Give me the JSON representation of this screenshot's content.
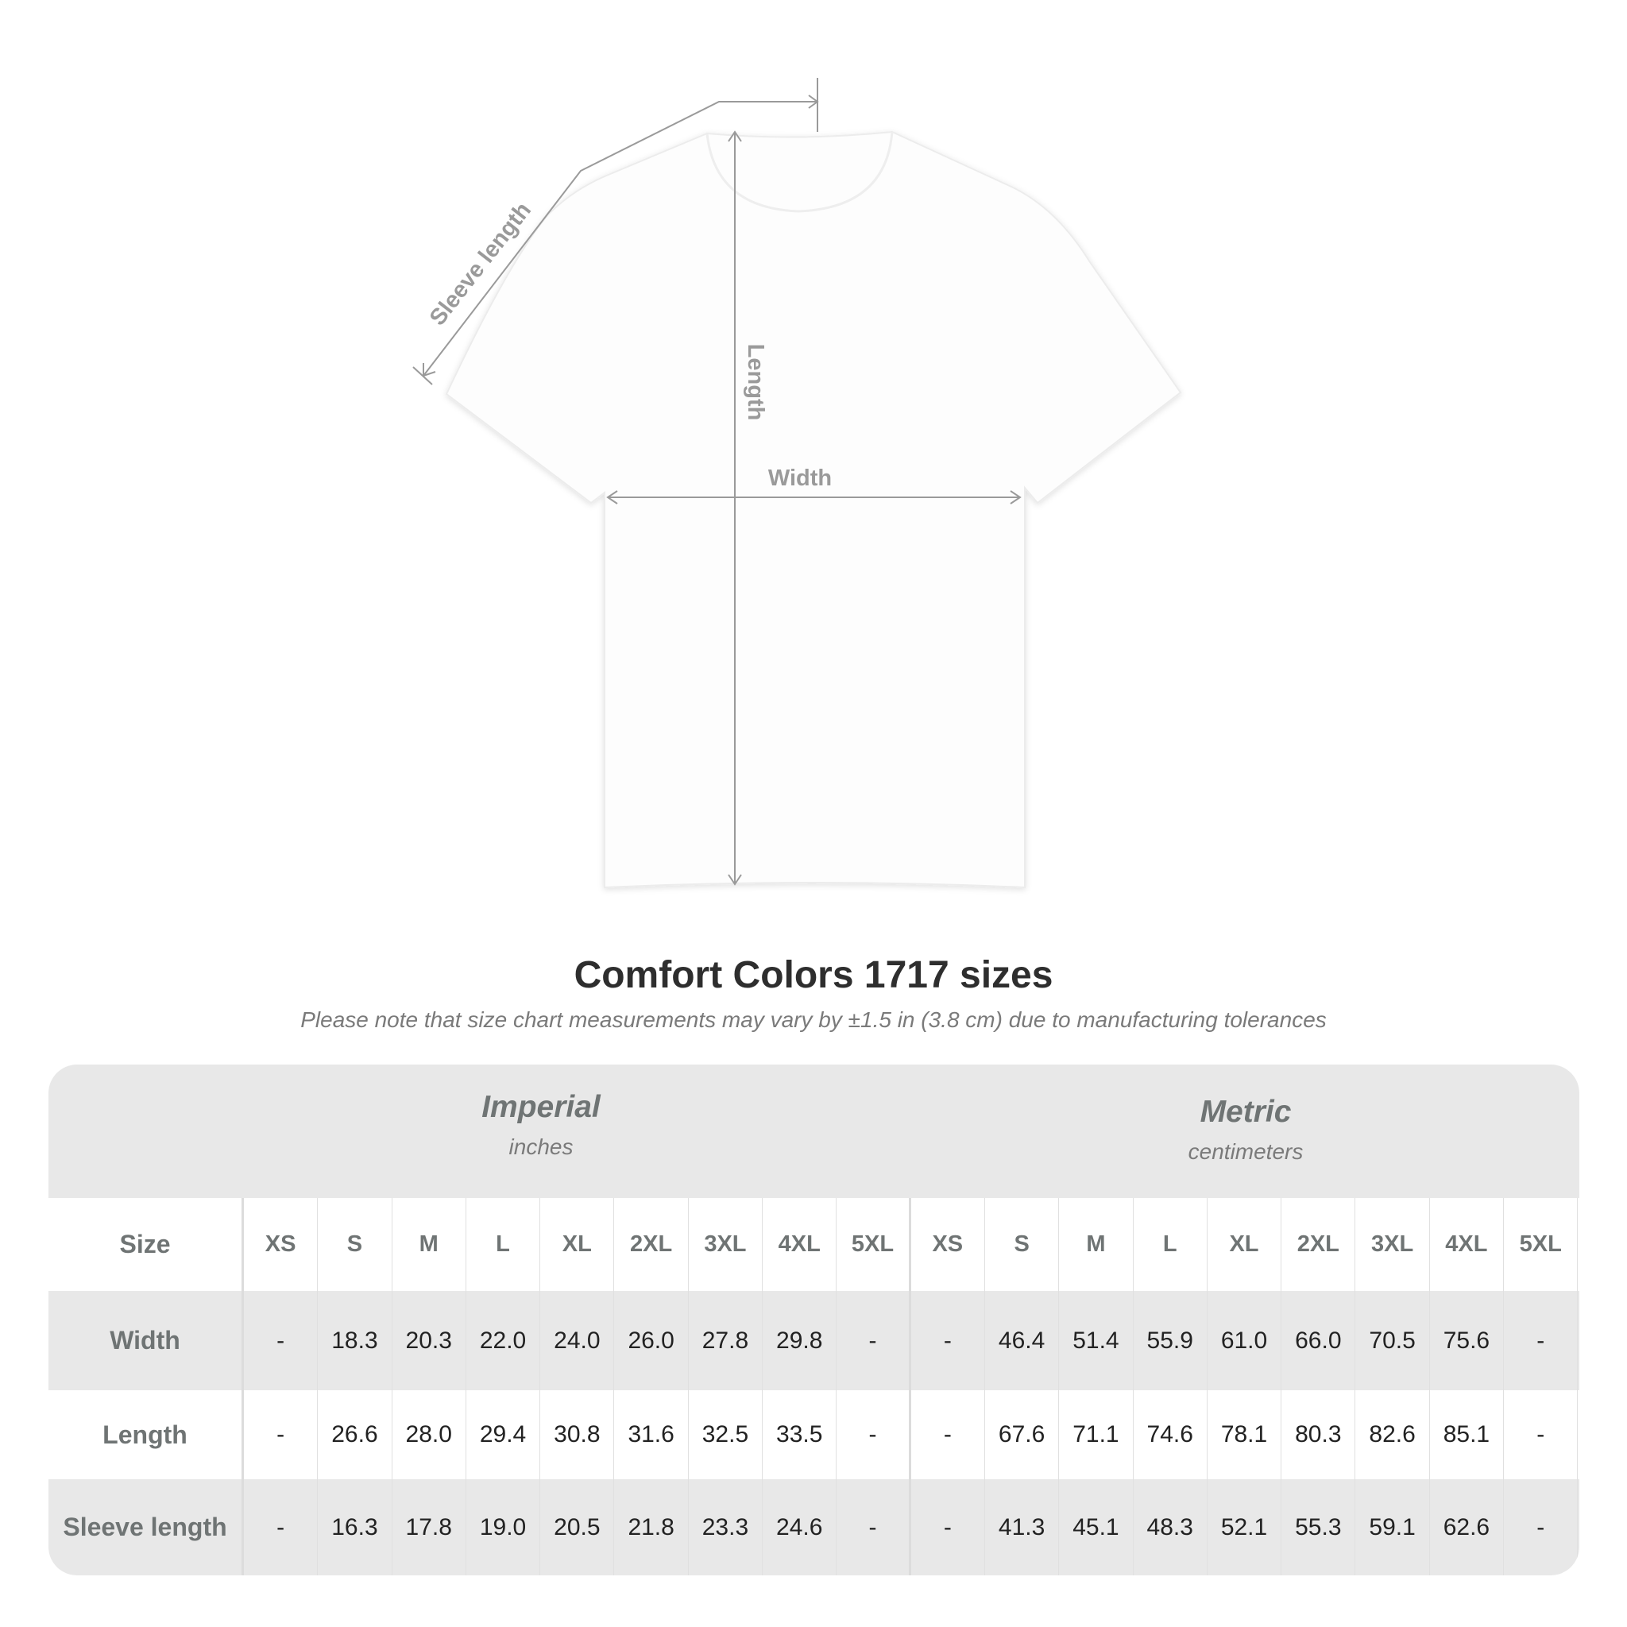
{
  "diagram": {
    "labels": {
      "sleeve": "Sleeve length",
      "length": "Length",
      "width": "Width"
    },
    "line_color": "#9a9a9a"
  },
  "title": "Comfort Colors 1717 sizes",
  "note": "Please note that size chart measurements may vary by ±1.5 in (3.8 cm) due to manufacturing tolerances",
  "table": {
    "imperial": {
      "name": "Imperial",
      "unit": "inches"
    },
    "metric": {
      "name": "Metric",
      "unit": "centimeters"
    },
    "size_label": "Size",
    "sizes": [
      "XS",
      "S",
      "M",
      "L",
      "XL",
      "2XL",
      "3XL",
      "4XL",
      "5XL"
    ],
    "rows": [
      {
        "label": "Width",
        "imperial": [
          "-",
          "18.3",
          "20.3",
          "22.0",
          "24.0",
          "26.0",
          "27.8",
          "29.8",
          "-"
        ],
        "metric": [
          "-",
          "46.4",
          "51.4",
          "55.9",
          "61.0",
          "66.0",
          "70.5",
          "75.6",
          "-"
        ]
      },
      {
        "label": "Length",
        "imperial": [
          "-",
          "26.6",
          "28.0",
          "29.4",
          "30.8",
          "31.6",
          "32.5",
          "33.5",
          "-"
        ],
        "metric": [
          "-",
          "67.6",
          "71.1",
          "74.6",
          "78.1",
          "80.3",
          "82.6",
          "85.1",
          "-"
        ]
      },
      {
        "label": "Sleeve length",
        "imperial": [
          "-",
          "16.3",
          "17.8",
          "19.0",
          "20.5",
          "21.8",
          "23.3",
          "24.6",
          "-"
        ],
        "metric": [
          "-",
          "41.3",
          "45.1",
          "48.3",
          "52.1",
          "55.3",
          "59.1",
          "62.6",
          "-"
        ]
      }
    ],
    "colors": {
      "header_bg": "#e8e8e8",
      "label_text": "#6f7474"
    }
  }
}
